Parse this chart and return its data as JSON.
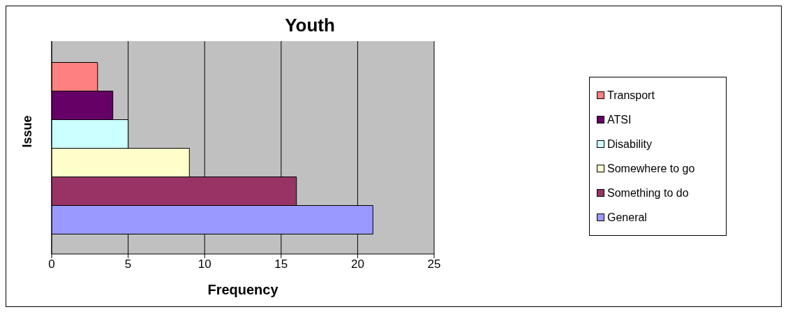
{
  "chart_data": {
    "type": "bar",
    "title": "Youth",
    "xlabel": "Frequency",
    "ylabel": "Issue",
    "orientation": "horizontal",
    "categories": [
      null
    ],
    "series": [
      {
        "name": "Transport",
        "color": "#ff8080",
        "values": [
          3
        ]
      },
      {
        "name": "ATSI",
        "color": "#660066",
        "values": [
          4
        ]
      },
      {
        "name": "Disability",
        "color": "#ccffff",
        "values": [
          5
        ]
      },
      {
        "name": "Somewhere to go",
        "color": "#ffffcc",
        "values": [
          9
        ]
      },
      {
        "name": "Something to do",
        "color": "#993366",
        "values": [
          16
        ]
      },
      {
        "name": "General",
        "color": "#9999ff",
        "values": [
          21
        ]
      }
    ],
    "xlim": [
      0,
      25
    ],
    "xticks": [
      0,
      5,
      10,
      15,
      20,
      25
    ],
    "grid": "x",
    "legend": "right"
  }
}
